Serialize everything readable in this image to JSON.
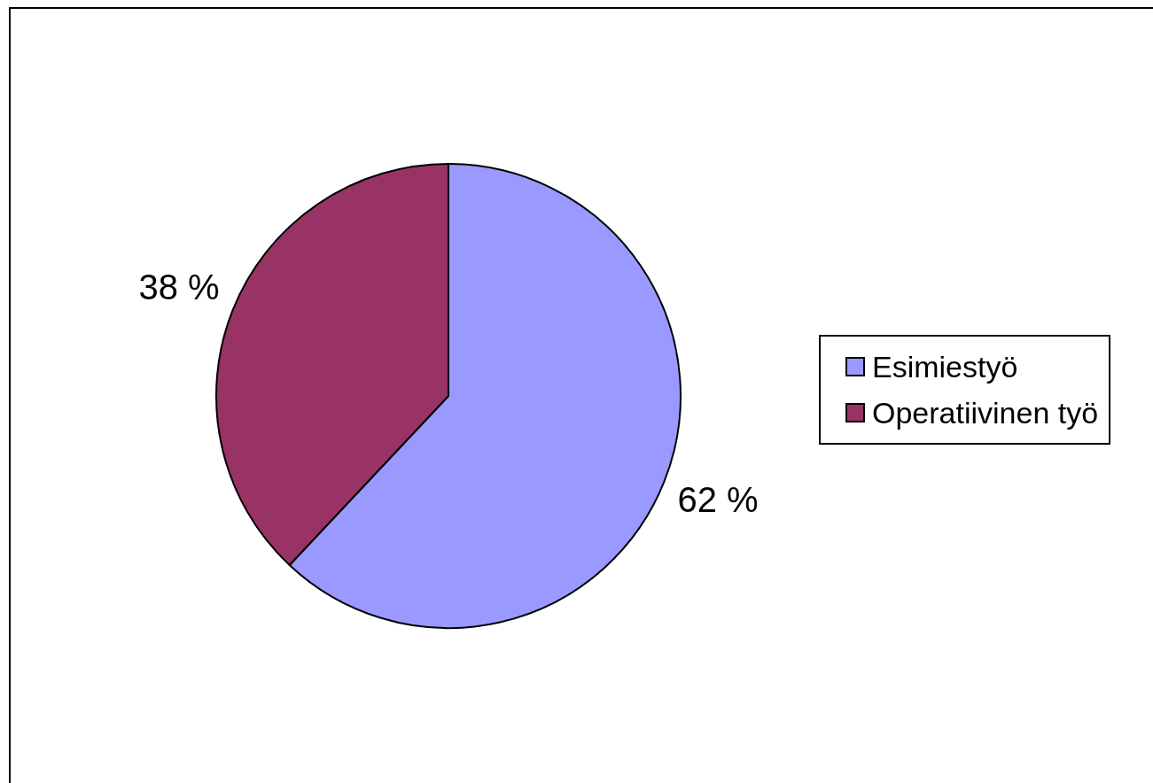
{
  "chart_data": {
    "type": "pie",
    "categories": [
      "Esimiestyö",
      "Operatiivinen työ"
    ],
    "values": [
      62,
      38
    ],
    "colors": [
      "#9999ff",
      "#993366"
    ],
    "value_labels": [
      "62 %",
      "38 %"
    ],
    "legend": "right"
  }
}
